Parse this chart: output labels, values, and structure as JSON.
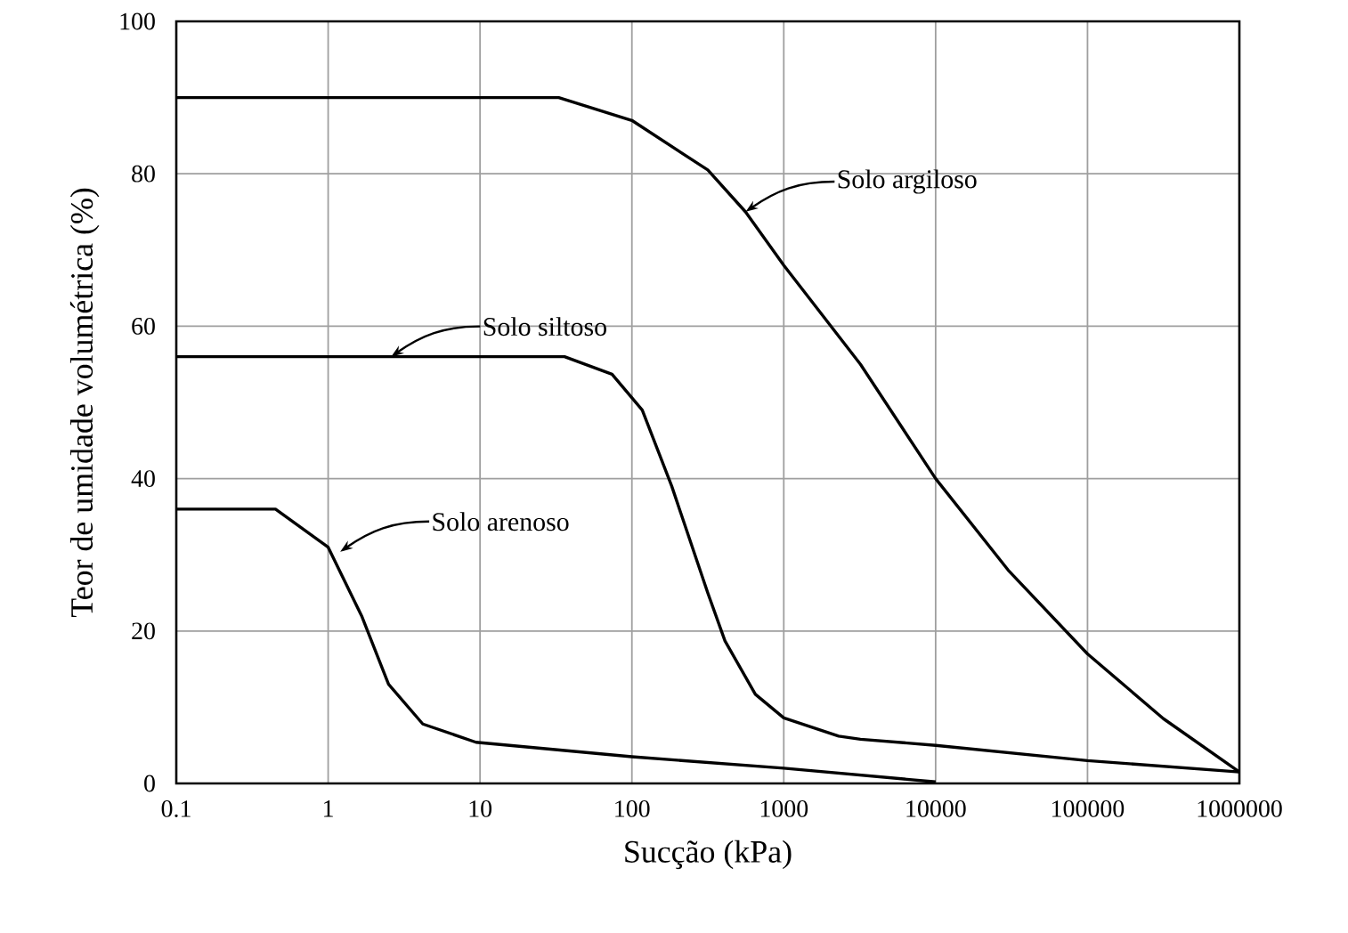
{
  "chart_data": {
    "type": "line",
    "xlabel": "Sucção (kPa)",
    "ylabel": "Teor de umidade volumétrica (%)",
    "log": "x",
    "grid": true,
    "marker": "none",
    "line_style": "solid",
    "xlim": [
      0.1,
      1000000
    ],
    "ylim": [
      0,
      100
    ],
    "xticks": [
      0.1,
      1,
      10,
      100,
      1000,
      10000,
      100000,
      1000000
    ],
    "yticks": [
      0,
      20,
      40,
      60,
      80,
      100
    ],
    "series": [
      {
        "color": "#000000",
        "x": [
          0.1,
          1,
          10,
          33,
          100,
          316,
          560,
          1000,
          3200,
          10000,
          30000,
          100000,
          316000,
          1000000
        ],
        "values": [
          90,
          90,
          90,
          90,
          87,
          80.5,
          75,
          68,
          55,
          40,
          28,
          17,
          8.5,
          1.5
        ]
      },
      {
        "color": "#000000",
        "x": [
          0.1,
          1,
          10,
          36,
          74,
          117,
          183,
          316,
          410,
          650,
          1000,
          2300,
          3200,
          10000,
          100000,
          1000000
        ],
        "values": [
          56,
          56,
          56,
          56,
          53.7,
          49,
          39,
          25,
          18.7,
          11.7,
          8.6,
          6.2,
          5.8,
          5,
          3,
          1.5
        ]
      },
      {
        "color": "#000000",
        "x": [
          0.1,
          0.45,
          1,
          1.66,
          2.5,
          4.2,
          9.4,
          100,
          1000,
          10000
        ],
        "values": [
          36,
          36,
          31,
          22,
          13,
          7.8,
          5.4,
          3.5,
          2,
          0.2
        ]
      }
    ],
    "annotations": [
      {
        "text": "Solo argiloso",
        "x": 560,
        "y": 75
      },
      {
        "text": "Solo siltoso",
        "x": 2.6,
        "y": 56
      },
      {
        "text": "Solo arenoso",
        "x": 1.2,
        "y": 30.4
      }
    ]
  }
}
